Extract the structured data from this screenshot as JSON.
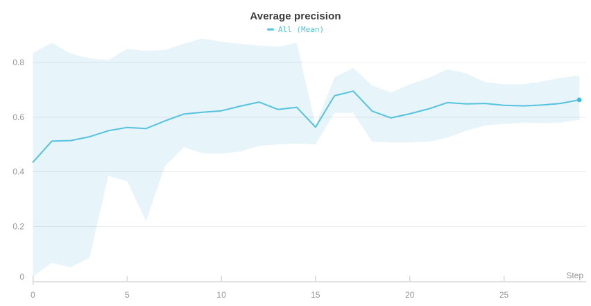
{
  "panel": {
    "title": "Average precision"
  },
  "legend": {
    "items": [
      {
        "label": "All (Mean)",
        "color": "#54c3dd"
      }
    ]
  },
  "axes": {
    "x_label": "Step",
    "x_tick_labels": [
      "0",
      "5",
      "10",
      "15",
      "20",
      "25"
    ],
    "y_tick_labels": [
      "0",
      "0.2",
      "0.4",
      "0.6",
      "0.8"
    ]
  },
  "chart_data": {
    "type": "line",
    "title": "Average precision",
    "xlabel": "Step",
    "ylabel": "",
    "legend_position": "top-center",
    "x_label_position": "right-end-of-axis",
    "grid": true,
    "x_ticks": [
      0,
      5,
      10,
      15,
      20,
      25
    ],
    "y_ticks": [
      0,
      0.2,
      0.4,
      0.6,
      0.8
    ],
    "xlim": [
      0,
      29.4
    ],
    "ylim": [
      0,
      0.9
    ],
    "x": [
      0,
      1,
      2,
      3,
      4,
      5,
      6,
      7,
      8,
      9,
      10,
      11,
      12,
      13,
      14,
      15,
      16,
      17,
      18,
      19,
      20,
      21,
      22,
      23,
      24,
      25,
      26,
      27,
      28,
      29
    ],
    "series": [
      {
        "name": "All (Mean)",
        "mean": [
          0.435,
          0.512,
          0.514,
          0.528,
          0.55,
          0.562,
          0.558,
          0.586,
          0.611,
          0.618,
          0.623,
          0.64,
          0.655,
          0.628,
          0.636,
          0.563,
          0.678,
          0.695,
          0.622,
          0.597,
          0.612,
          0.63,
          0.653,
          0.648,
          0.65,
          0.643,
          0.641,
          0.644,
          0.65,
          0.663
        ],
        "band_upper": [
          0.835,
          0.872,
          0.833,
          0.815,
          0.808,
          0.85,
          0.842,
          0.846,
          0.868,
          0.888,
          0.876,
          0.868,
          0.862,
          0.857,
          0.872,
          0.57,
          0.745,
          0.78,
          0.716,
          0.69,
          0.72,
          0.743,
          0.775,
          0.76,
          0.728,
          0.72,
          0.72,
          0.73,
          0.744,
          0.752
        ],
        "band_lower": [
          0.018,
          0.066,
          0.05,
          0.085,
          0.385,
          0.365,
          0.22,
          0.42,
          0.49,
          0.468,
          0.466,
          0.474,
          0.495,
          0.5,
          0.503,
          0.5,
          0.615,
          0.615,
          0.51,
          0.508,
          0.508,
          0.51,
          0.525,
          0.55,
          0.57,
          0.575,
          0.58,
          0.578,
          0.58,
          0.59
        ],
        "end_marker": true
      }
    ],
    "colors": {
      "line": "#54c3dd",
      "dot": "#3dbcdb",
      "band": "#e7f4f9",
      "grid": "#ededed",
      "axis": "#e0e0e0",
      "tick": "#d8d8d8",
      "tick_text": "#979797",
      "title_text": "#3a3a3a"
    }
  }
}
